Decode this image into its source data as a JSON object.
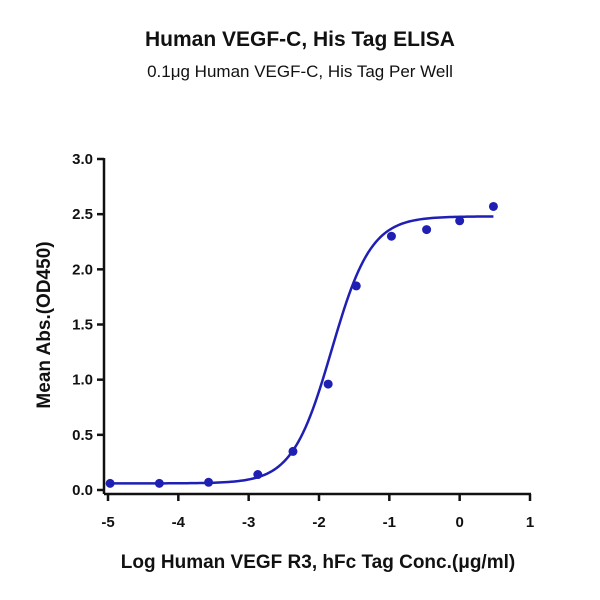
{
  "chart_data": {
    "type": "scatter",
    "title": "Human VEGF-C, His Tag ELISA",
    "subtitle": "0.1μg Human VEGF-C, His Tag Per Well",
    "xlabel": "Log Human VEGF R3, hFc Tag Conc.(μg/ml)",
    "ylabel": "Mean Abs.(OD450)",
    "xlim": [
      -5,
      1
    ],
    "ylim": [
      0,
      3
    ],
    "x_ticks": [
      -5,
      -4,
      -3,
      -2,
      -1,
      0,
      1
    ],
    "x_tick_labels": [
      "-5",
      "-4",
      "-3",
      "-2",
      "-1",
      "0",
      "1"
    ],
    "y_ticks": [
      0,
      0.5,
      1,
      1.5,
      2,
      2.5,
      3
    ],
    "y_tick_labels": [
      "0.0",
      "0.5",
      "1.0",
      "1.5",
      "2.0",
      "2.5",
      "3.0"
    ],
    "grid": false,
    "point_color": "#1f1fb4",
    "curve_color": "#1f1fb4",
    "series": [
      {
        "points": [
          {
            "x": -4.97,
            "y": 0.06
          },
          {
            "x": -4.27,
            "y": 0.06
          },
          {
            "x": -3.57,
            "y": 0.07
          },
          {
            "x": -2.87,
            "y": 0.14
          },
          {
            "x": -2.37,
            "y": 0.35
          },
          {
            "x": -1.87,
            "y": 0.96
          },
          {
            "x": -1.47,
            "y": 1.85
          },
          {
            "x": -0.97,
            "y": 2.3
          },
          {
            "x": -0.47,
            "y": 2.36
          },
          {
            "x": 0.0,
            "y": 2.44
          },
          {
            "x": 0.48,
            "y": 2.57
          }
        ],
        "fit": {
          "model": "4PL",
          "bottom": 0.06,
          "top": 2.48,
          "logEC50": -1.82,
          "hill": 1.55,
          "x_range": [
            -5,
            0.48
          ]
        }
      }
    ]
  }
}
